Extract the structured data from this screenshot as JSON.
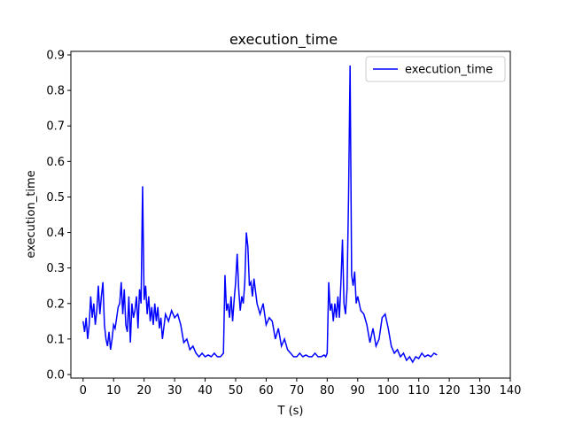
{
  "chart_data": {
    "type": "line",
    "title": "execution_time",
    "xlabel": "T (s)",
    "ylabel": "execution_time",
    "xlim": [
      -4,
      140
    ],
    "ylim": [
      -0.01,
      0.91
    ],
    "xticks": [
      0,
      10,
      20,
      30,
      40,
      50,
      60,
      70,
      80,
      90,
      100,
      110,
      120,
      130,
      140
    ],
    "yticks": [
      0.0,
      0.1,
      0.2,
      0.3,
      0.4,
      0.5,
      0.6,
      0.7,
      0.8,
      0.9
    ],
    "grid": false,
    "legend": {
      "position": "top-right",
      "entries": [
        "execution_time"
      ]
    },
    "colors": {
      "line": "#0000ff",
      "axes": "#000000"
    },
    "series": [
      {
        "name": "execution_time",
        "x": [
          0,
          0.5,
          1,
          1.5,
          2,
          2.5,
          3,
          3.5,
          4,
          4.5,
          5,
          5.5,
          6,
          6.5,
          7,
          7.5,
          8,
          8.5,
          9,
          9.5,
          10,
          10.5,
          11,
          11.5,
          12,
          12.5,
          13,
          13.5,
          14,
          14.5,
          15,
          15.5,
          16,
          16.5,
          17,
          17.5,
          18,
          18.5,
          19,
          19.5,
          20,
          20.5,
          21,
          21.5,
          22,
          22.5,
          23,
          23.5,
          24,
          24.5,
          25,
          25.5,
          26,
          27,
          28,
          29,
          30,
          31,
          32,
          33,
          34,
          35,
          36,
          37,
          38,
          39,
          40,
          41,
          42,
          43,
          44,
          45,
          46,
          46.5,
          47,
          47.5,
          48,
          48.5,
          49,
          49.5,
          50,
          50.5,
          51,
          51.5,
          52,
          52.5,
          53,
          53.5,
          54,
          54.5,
          55,
          55.5,
          56,
          57,
          58,
          59,
          60,
          61,
          62,
          63,
          64,
          65,
          66,
          67,
          68,
          69,
          70,
          71,
          72,
          73,
          74,
          75,
          76,
          77,
          78,
          79,
          79.5,
          80,
          80.5,
          81,
          81.5,
          82,
          82.5,
          83,
          83.5,
          84,
          84.5,
          85,
          85.5,
          86,
          86.5,
          87,
          87.5,
          88,
          88.5,
          89,
          89.5,
          90,
          91,
          92,
          93,
          94,
          95,
          96,
          97,
          98,
          99,
          100,
          101,
          102,
          103,
          104,
          105,
          106,
          107,
          108,
          109,
          110,
          111,
          112,
          113,
          114,
          115,
          116
        ],
        "y": [
          0.15,
          0.12,
          0.16,
          0.1,
          0.14,
          0.22,
          0.16,
          0.2,
          0.14,
          0.18,
          0.25,
          0.17,
          0.22,
          0.26,
          0.14,
          0.1,
          0.08,
          0.12,
          0.07,
          0.1,
          0.14,
          0.13,
          0.16,
          0.19,
          0.2,
          0.26,
          0.17,
          0.24,
          0.14,
          0.12,
          0.22,
          0.09,
          0.2,
          0.16,
          0.18,
          0.22,
          0.13,
          0.24,
          0.2,
          0.53,
          0.21,
          0.25,
          0.17,
          0.22,
          0.15,
          0.19,
          0.14,
          0.2,
          0.15,
          0.19,
          0.13,
          0.16,
          0.1,
          0.17,
          0.15,
          0.18,
          0.16,
          0.17,
          0.14,
          0.09,
          0.1,
          0.07,
          0.08,
          0.06,
          0.05,
          0.06,
          0.05,
          0.055,
          0.05,
          0.06,
          0.05,
          0.05,
          0.06,
          0.28,
          0.18,
          0.2,
          0.16,
          0.22,
          0.15,
          0.21,
          0.26,
          0.34,
          0.24,
          0.18,
          0.22,
          0.2,
          0.26,
          0.4,
          0.36,
          0.25,
          0.26,
          0.22,
          0.27,
          0.2,
          0.17,
          0.2,
          0.14,
          0.16,
          0.15,
          0.1,
          0.13,
          0.08,
          0.1,
          0.07,
          0.06,
          0.05,
          0.05,
          0.06,
          0.05,
          0.055,
          0.05,
          0.05,
          0.06,
          0.05,
          0.05,
          0.055,
          0.05,
          0.06,
          0.26,
          0.18,
          0.2,
          0.15,
          0.2,
          0.16,
          0.22,
          0.16,
          0.26,
          0.38,
          0.2,
          0.17,
          0.24,
          0.5,
          0.87,
          0.28,
          0.25,
          0.29,
          0.2,
          0.22,
          0.18,
          0.17,
          0.14,
          0.09,
          0.13,
          0.08,
          0.1,
          0.16,
          0.17,
          0.13,
          0.08,
          0.06,
          0.07,
          0.05,
          0.06,
          0.04,
          0.05,
          0.035,
          0.05,
          0.045,
          0.06,
          0.05,
          0.055,
          0.05,
          0.06,
          0.055
        ]
      }
    ]
  }
}
